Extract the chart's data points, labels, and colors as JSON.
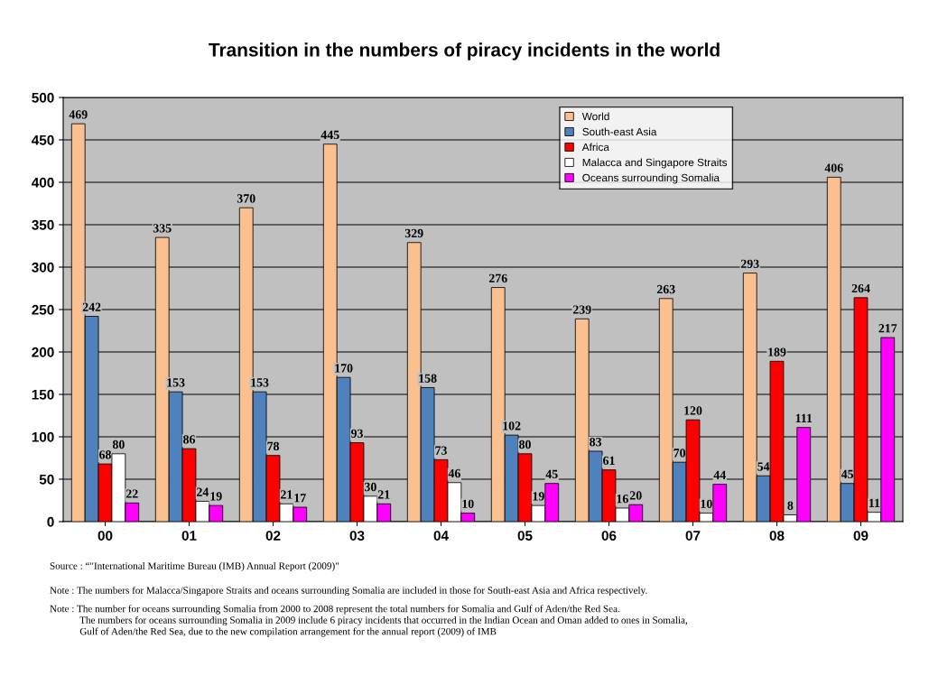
{
  "chart_data": {
    "type": "bar",
    "title": "Transition in the numbers of piracy incidents in the world",
    "categories": [
      "00",
      "01",
      "02",
      "03",
      "04",
      "05",
      "06",
      "07",
      "08",
      "09"
    ],
    "series": [
      {
        "name": "World",
        "color": "#fac090",
        "values": [
          469,
          335,
          370,
          445,
          329,
          276,
          239,
          263,
          293,
          406
        ]
      },
      {
        "name": "South-east Asia",
        "color": "#4f81bd",
        "values": [
          242,
          153,
          153,
          170,
          158,
          102,
          83,
          70,
          54,
          45
        ]
      },
      {
        "name": "Africa",
        "color": "#ff0000",
        "values": [
          68,
          86,
          78,
          93,
          73,
          80,
          61,
          120,
          189,
          264
        ]
      },
      {
        "name": "Malacca and Singapore Straits",
        "color": "#ffffff",
        "values": [
          80,
          24,
          21,
          30,
          46,
          19,
          16,
          10,
          8,
          11
        ]
      },
      {
        "name": "Oceans surrounding Somalia",
        "color": "#ff00ff",
        "values": [
          22,
          19,
          17,
          21,
          10,
          45,
          20,
          44,
          111,
          217
        ]
      }
    ],
    "ylim": [
      0,
      500
    ],
    "yticks": [
      0,
      50,
      100,
      150,
      200,
      250,
      300,
      350,
      400,
      450,
      500
    ],
    "grid": "y",
    "legend": "top right",
    "data_labels": true,
    "annotations": [
      "Source : “\"International Maritime Bureau (IMB) Annual Report (2009)\"",
      "Note : The numbers for Malacca/Singapore Straits and oceans surrounding Somalia are included in those for South-east Asia and Africa respectively.",
      "Note : The number for oceans surrounding Somalia from 2000 to 2008 represent the total numbers for Somalia and Gulf of Aden/the Red Sea.\n            The numbers for oceans surrounding Somalia in 2009 include 6 piracy incidents that occurred in the Indian Ocean and Oman added to ones in Somalia,\n            Gulf of Aden/the Red Sea, due to the new compilation arrangement for the annual report (2009) of IMB"
    ]
  }
}
